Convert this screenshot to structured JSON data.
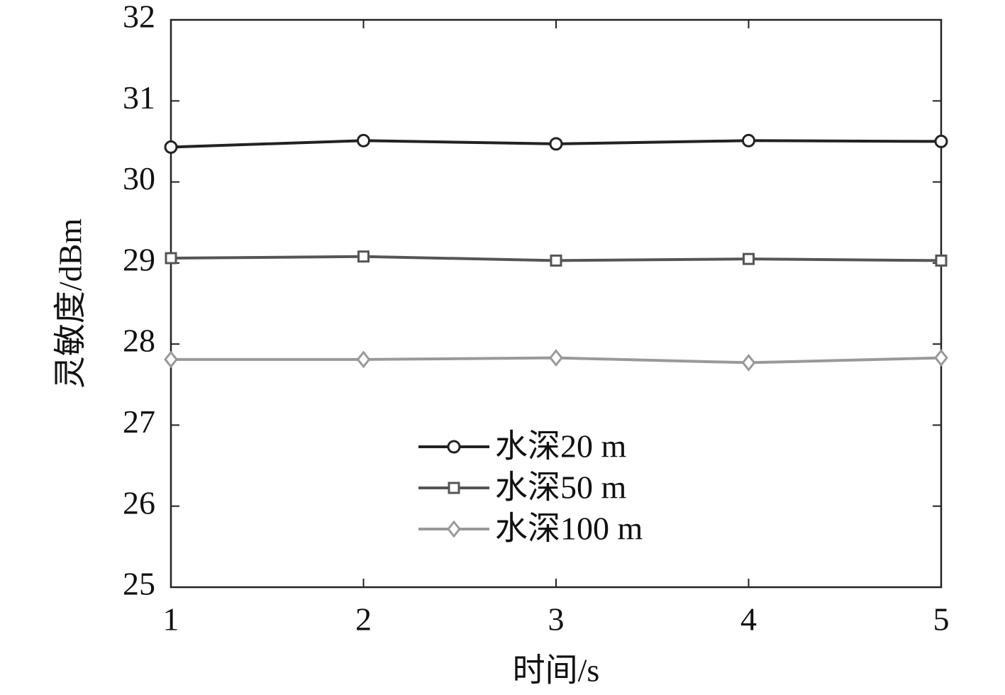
{
  "chart_data": {
    "type": "line",
    "x_label": "时间/s",
    "y_label": "灵敏度/dBm",
    "x": [
      1,
      2,
      3,
      4,
      5
    ],
    "series": [
      {
        "name": "水深20 m",
        "color": "#222222",
        "marker": "circle",
        "values": [
          30.43,
          30.51,
          30.47,
          30.51,
          30.5
        ]
      },
      {
        "name": "水深50 m",
        "color": "#555555",
        "marker": "square",
        "values": [
          29.06,
          29.08,
          29.03,
          29.05,
          29.03
        ]
      },
      {
        "name": "水深100 m",
        "color": "#999999",
        "marker": "diamond",
        "values": [
          27.81,
          27.81,
          27.83,
          27.77,
          27.83
        ]
      }
    ],
    "xlim": [
      1,
      5
    ],
    "xticks": [
      1,
      2,
      3,
      4,
      5
    ],
    "ylim": [
      25,
      32
    ],
    "yticks": [
      25,
      26,
      27,
      28,
      29,
      30,
      31,
      32
    ],
    "grid": false,
    "legend": "center"
  }
}
